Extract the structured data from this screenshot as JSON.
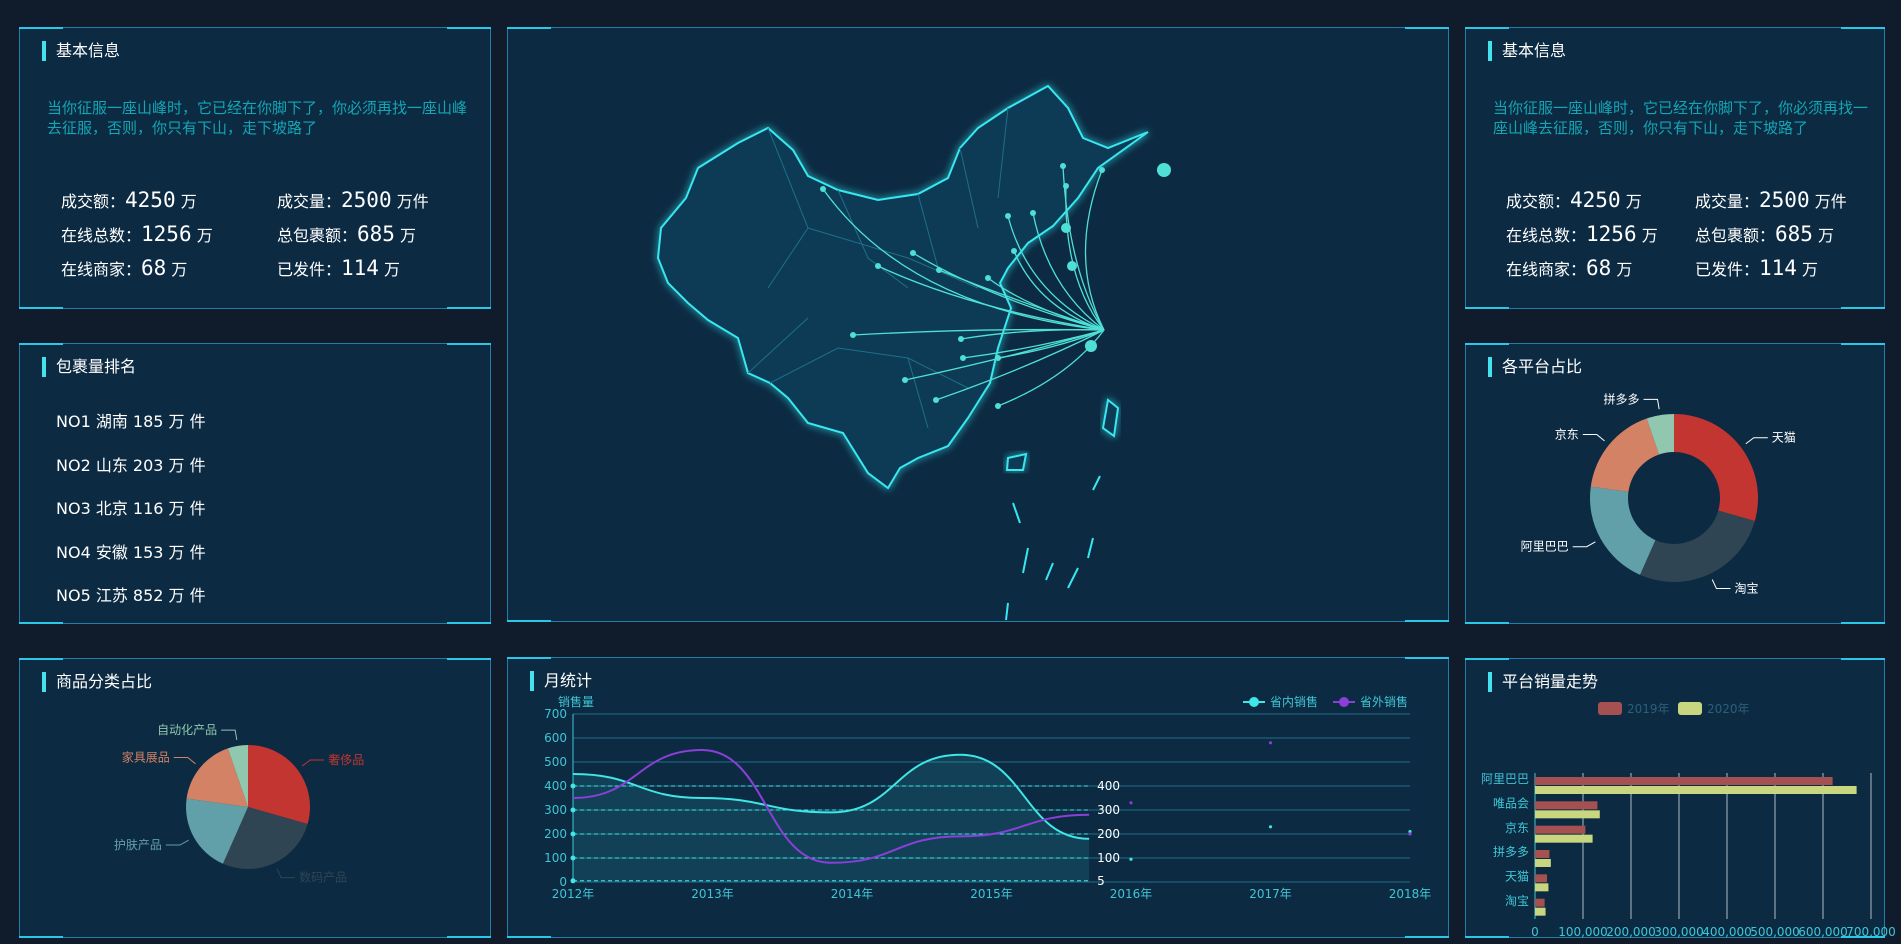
{
  "panels": {
    "info_left": {
      "title": "基本信息"
    },
    "ranking": {
      "title": "包裹量排名"
    },
    "category": {
      "title": "商品分类占比"
    },
    "monthly": {
      "title": "月统计"
    },
    "info_right": {
      "title": "基本信息"
    },
    "platform_share": {
      "title": "各平台占比"
    },
    "platform_trend": {
      "title": "平台销量走势"
    }
  },
  "info": {
    "description_left": "当你征服一座山峰时，它已经在你脚下了，你必须再找一座山峰去征服，否则，你只有下山，走下坡路了",
    "description_right": "当你征服一座山峰时，它已经在你脚下了，你必须再找一座山峰去征服，否则，你只有下山，走下坡路了",
    "stats": [
      {
        "label": "成交额：",
        "value": "4250",
        "unit": "万"
      },
      {
        "label": "成交量：",
        "value": "2500",
        "unit": "万件"
      },
      {
        "label": "在线总数：",
        "value": "1256",
        "unit": "万"
      },
      {
        "label": "总包裹额：",
        "value": "685",
        "unit": "万"
      },
      {
        "label": "在线商家：",
        "value": "68",
        "unit": "万"
      },
      {
        "label": "已发件：",
        "value": "114",
        "unit": "万"
      }
    ]
  },
  "ranking": [
    "NO1 湖南 185 万 件",
    "NO2 山东 203 万 件",
    "NO3 北京 116 万 件",
    "NO4 安徽 153 万 件",
    "NO5 江苏 852 万 件"
  ],
  "colors": {
    "bg": "#101b2b",
    "panel": "#0c2a42",
    "border": "#1f7fa8",
    "accent": "#45e2ee",
    "red": "#c23531",
    "dark": "#2f4554",
    "teal": "#61a0a8",
    "orange": "#d48265",
    "green": "#91c7ae",
    "domestic": "#3fe6e6",
    "foreign": "#8a3fd8",
    "bar2019": "#a55152",
    "bar2020": "#c8d77f"
  },
  "chart_data": [
    {
      "type": "pie",
      "name": "商品分类占比",
      "slices": [
        {
          "label": "奢侈品",
          "value": 335,
          "color": "#c23531"
        },
        {
          "label": "数码产品",
          "value": 310,
          "color": "#2f4554"
        },
        {
          "label": "护肤产品",
          "value": 234,
          "color": "#61a0a8"
        },
        {
          "label": "家具展品",
          "value": 200,
          "color": "#d48265"
        },
        {
          "label": "自动化产品",
          "value": 60,
          "color": "#91c7ae"
        }
      ]
    },
    {
      "type": "pie",
      "variant": "donut",
      "name": "各平台占比",
      "slices": [
        {
          "label": "天猫",
          "value": 335,
          "color": "#c23531"
        },
        {
          "label": "淘宝",
          "value": 310,
          "color": "#2f4554"
        },
        {
          "label": "阿里巴巴",
          "value": 234,
          "color": "#61a0a8"
        },
        {
          "label": "京东",
          "value": 200,
          "color": "#d48265"
        },
        {
          "label": "拼多多",
          "value": 60,
          "color": "#91c7ae"
        }
      ]
    },
    {
      "type": "line",
      "name": "月统计",
      "ylabel": "销售量",
      "ylim": [
        0,
        700
      ],
      "yticks": [
        0,
        100,
        200,
        300,
        400,
        500,
        600,
        700
      ],
      "categories": [
        "2012年",
        "2013年",
        "2014年",
        "2015年",
        "2016年",
        "2017年",
        "2018年"
      ],
      "series": [
        {
          "name": "省内销售",
          "color": "#3fe6e6",
          "values": [
            450,
            350,
            290,
            530,
            180,
            null,
            null
          ]
        },
        {
          "name": "省外销售",
          "color": "#8a3fd8",
          "values": [
            350,
            550,
            80,
            190,
            280,
            null,
            null
          ]
        }
      ],
      "guide_labels": [
        "400",
        "300",
        "200",
        "100",
        "5"
      ],
      "legend": "top-right"
    },
    {
      "type": "bar",
      "orientation": "horizontal",
      "name": "平台销量走势",
      "categories": [
        "阿里巴巴",
        "唯品会",
        "京东",
        "拼多多",
        "天猫",
        "淘宝"
      ],
      "series": [
        {
          "name": "2019年",
          "color": "#a55152",
          "values": [
            620000,
            130000,
            105000,
            30000,
            25000,
            20000
          ]
        },
        {
          "name": "2020年",
          "color": "#c8d77f",
          "values": [
            670000,
            135000,
            120000,
            33000,
            28000,
            22000
          ]
        }
      ],
      "xticks": [
        "0",
        "100,000",
        "200,000",
        "300,000",
        "400,000",
        "500,000",
        "600,000",
        "700,000"
      ],
      "xlim": [
        0,
        700000
      ],
      "legend": "top"
    }
  ]
}
